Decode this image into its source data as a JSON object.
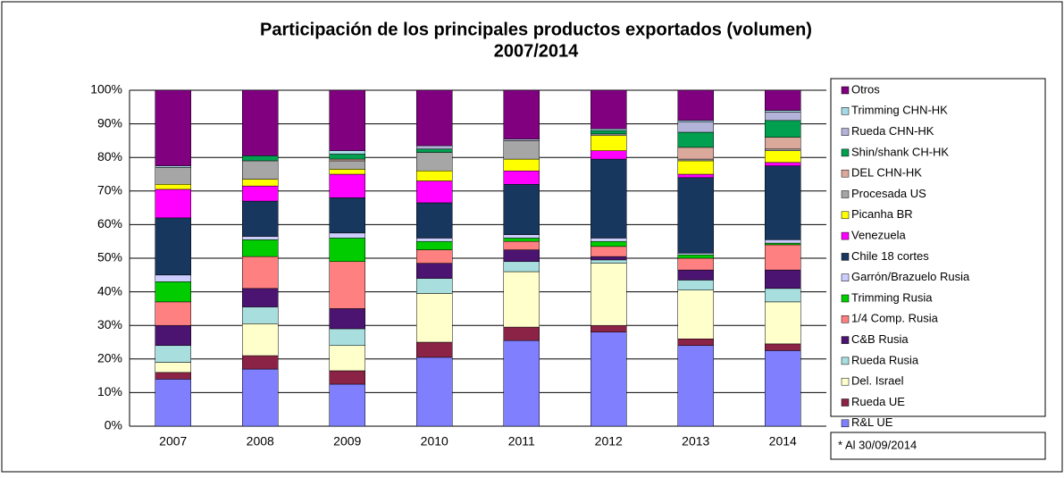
{
  "chart_data": {
    "type": "stacked_bar",
    "title": "Participación de los principales productos exportados (volumen)",
    "subtitle": "2007/2014",
    "annotation": "* Al 30/09/2014",
    "categories": [
      "2007",
      "2008",
      "2009",
      "2010",
      "2011",
      "2012",
      "2013",
      "2014"
    ],
    "ylim": [
      0,
      100
    ],
    "yticks": [
      {
        "value": 0,
        "label": "0%"
      },
      {
        "value": 10,
        "label": "10%"
      },
      {
        "value": 20,
        "label": "20%"
      },
      {
        "value": 30,
        "label": "30%"
      },
      {
        "value": 40,
        "label": "40%"
      },
      {
        "value": 50,
        "label": "50%"
      },
      {
        "value": 60,
        "label": "60%"
      },
      {
        "value": 70,
        "label": "70%"
      },
      {
        "value": 80,
        "label": "80%"
      },
      {
        "value": 90,
        "label": "90%"
      },
      {
        "value": 100,
        "label": "100%"
      }
    ],
    "grid": true,
    "legend": "right",
    "series": [
      {
        "name": "R&L UE",
        "color": "#8080ff",
        "values": [
          14,
          17,
          12.5,
          20.5,
          25.5,
          28,
          24,
          22.5
        ]
      },
      {
        "name": "Rueda UE",
        "color": "#8b2346",
        "values": [
          2,
          4,
          4,
          4.5,
          4,
          2,
          2,
          2
        ]
      },
      {
        "name": "Del. Israel",
        "color": "#ffffcc",
        "values": [
          3,
          9.5,
          7.5,
          14.5,
          16.5,
          18.5,
          14.5,
          12.5
        ]
      },
      {
        "name": "Rueda Rusia",
        "color": "#a8dede",
        "values": [
          5,
          5,
          5,
          4.5,
          3,
          1,
          3,
          4
        ]
      },
      {
        "name": "C&B Rusia",
        "color": "#4a1470",
        "values": [
          6,
          5.5,
          6,
          4.5,
          3.5,
          1,
          3,
          5.5
        ]
      },
      {
        "name": "1/4 Comp. Rusia",
        "color": "#ff8080",
        "values": [
          7,
          9.5,
          14,
          4,
          2.5,
          3,
          3.5,
          7.5
        ]
      },
      {
        "name": "Trimming Rusia",
        "color": "#00cc00",
        "values": [
          6,
          5,
          7,
          2.5,
          1,
          1.5,
          1,
          0.5
        ]
      },
      {
        "name": "Garrón/Brazuelo Rusia",
        "color": "#ccccff",
        "values": [
          2,
          1,
          1.5,
          1,
          1,
          1,
          0.5,
          1
        ]
      },
      {
        "name": "Chile 18 cortes",
        "color": "#17375e",
        "values": [
          17,
          10.5,
          10.5,
          10.5,
          15,
          23.5,
          22.5,
          22
        ]
      },
      {
        "name": "Venezuela",
        "color": "#ff00ff",
        "values": [
          8.5,
          4.5,
          7,
          6.5,
          4,
          2.5,
          1,
          1
        ]
      },
      {
        "name": "Picanha BR",
        "color": "#ffff00",
        "values": [
          1.5,
          2,
          1.5,
          3,
          3.5,
          4.5,
          4,
          3.5
        ]
      },
      {
        "name": "Procesada US",
        "color": "#a6a6a6",
        "values": [
          5,
          5.5,
          2.5,
          5.5,
          5.5,
          0.5,
          0.5,
          0.5
        ]
      },
      {
        "name": "DEL CHN-HK",
        "color": "#dba89c",
        "values": [
          0,
          0,
          0.5,
          0,
          0,
          0,
          3.5,
          3.5
        ]
      },
      {
        "name": "Shin/shank CH-HK",
        "color": "#00a050",
        "values": [
          0,
          1.5,
          1.5,
          1,
          0,
          1,
          4.5,
          5
        ]
      },
      {
        "name": "Rueda CHN-HK",
        "color": "#b3b3d9",
        "values": [
          0,
          0,
          0,
          1,
          0.5,
          0,
          3,
          2.5
        ]
      },
      {
        "name": "Trimming CHN-HK",
        "color": "#a6d9e6",
        "values": [
          0.5,
          0,
          1,
          0,
          0,
          0.5,
          0.5,
          0.5
        ]
      },
      {
        "name": "Otros",
        "color": "#800080",
        "values": [
          22.5,
          19.5,
          18,
          16.5,
          14.5,
          11.5,
          9,
          6
        ]
      }
    ]
  }
}
